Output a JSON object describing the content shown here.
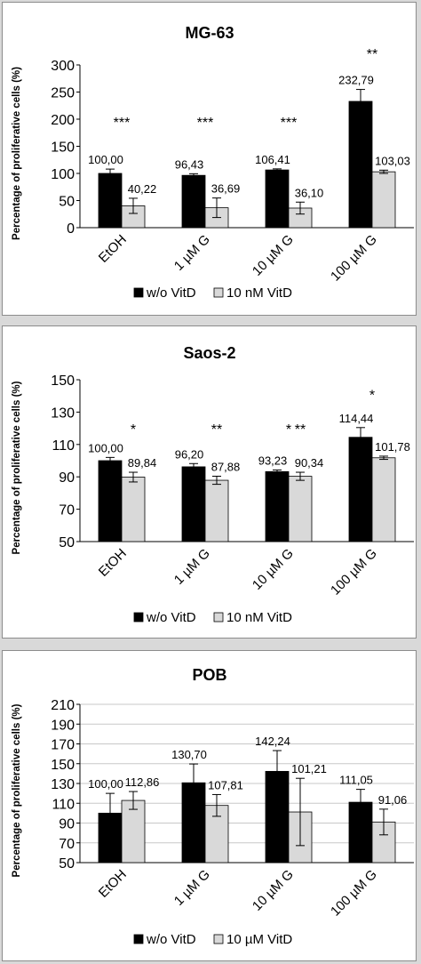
{
  "chart_data": [
    {
      "type": "bar",
      "title": "MG-63",
      "ylabel": "Percentage of proliferative cells (%)",
      "xlabel": "",
      "ylim": [
        0,
        300
      ],
      "yticks": [
        0,
        50,
        100,
        150,
        200,
        250,
        300
      ],
      "categories": [
        "EtOH",
        "1 µM G",
        "10 µM G",
        "100 µM G"
      ],
      "series": [
        {
          "name": "w/o VitD",
          "color": "#000000",
          "values": [
            100.0,
            96.43,
            106.41,
            232.79
          ],
          "errors": [
            8,
            3,
            2,
            22
          ],
          "labels": [
            "100,00",
            "96,43",
            "106,41",
            "232,79"
          ]
        },
        {
          "name": "10 nM VitD",
          "color": "#d9d9d9",
          "values": [
            40.22,
            36.69,
            36.1,
            103.03
          ],
          "errors": [
            14,
            18,
            11,
            3
          ],
          "labels": [
            "40,22",
            "36,69",
            "36,10",
            "103,03"
          ]
        }
      ],
      "significance": [
        {
          "category": 0,
          "text": "***",
          "y": 198
        },
        {
          "category": 1,
          "text": "***",
          "y": 198
        },
        {
          "category": 2,
          "text": "***",
          "y": 198
        },
        {
          "category": 3,
          "text": "**",
          "y": 325
        }
      ],
      "legend_position": "bottom",
      "grid": false
    },
    {
      "type": "bar",
      "title": "Saos-2",
      "ylabel": "Percentage of proliferative cells (%)",
      "xlabel": "",
      "ylim": [
        50,
        150
      ],
      "yticks": [
        50,
        70,
        90,
        110,
        130,
        150
      ],
      "categories": [
        "EtOH",
        "1 µM G",
        "10 µM G",
        "100 µM G"
      ],
      "series": [
        {
          "name": "w/o VitD",
          "color": "#000000",
          "values": [
            100.0,
            96.2,
            93.23,
            114.44
          ],
          "errors": [
            2,
            2,
            1,
            6
          ],
          "labels": [
            "100,00",
            "96,20",
            "93,23",
            "114,44"
          ]
        },
        {
          "name": "10 nM VitD",
          "color": "#d9d9d9",
          "values": [
            89.84,
            87.88,
            90.34,
            101.78
          ],
          "errors": [
            3,
            2.5,
            2.5,
            1
          ],
          "labels": [
            "89,84",
            "87,88",
            "90,34",
            "101,78"
          ]
        }
      ],
      "significance": [
        {
          "category": 0,
          "offset": 0.5,
          "text": "*",
          "y": 121
        },
        {
          "category": 1,
          "offset": 0.5,
          "text": "**",
          "y": 121
        },
        {
          "category": 2,
          "offset": 0,
          "text": "*",
          "y": 121
        },
        {
          "category": 2,
          "offset": 0.5,
          "text": "**",
          "y": 121
        },
        {
          "category": 3,
          "offset": 0,
          "text": "*",
          "y": 142
        }
      ],
      "legend_position": "bottom",
      "grid": false
    },
    {
      "type": "bar",
      "title": "POB",
      "ylabel": "Percentage of proliferative cells (%)",
      "xlabel": "",
      "ylim": [
        50,
        210
      ],
      "yticks": [
        50,
        70,
        90,
        110,
        130,
        150,
        170,
        190,
        210
      ],
      "categories": [
        "EtOH",
        "1 µM G",
        "10 µM G",
        "100 µM G"
      ],
      "series": [
        {
          "name": "w/o VitD",
          "color": "#000000",
          "values": [
            100.0,
            130.7,
            142.24,
            111.05
          ],
          "errors": [
            20,
            19,
            21,
            13
          ],
          "labels": [
            "100,00",
            "130,70",
            "142,24",
            "111,05"
          ]
        },
        {
          "name": "10 µM VitD",
          "color": "#d9d9d9",
          "values": [
            112.86,
            107.81,
            101.21,
            91.06
          ],
          "errors": [
            9,
            11,
            34,
            13
          ],
          "labels": [
            "112,86",
            "107,81",
            "101,21",
            "91,06"
          ]
        }
      ],
      "significance": [],
      "legend_position": "bottom",
      "grid": true
    }
  ]
}
